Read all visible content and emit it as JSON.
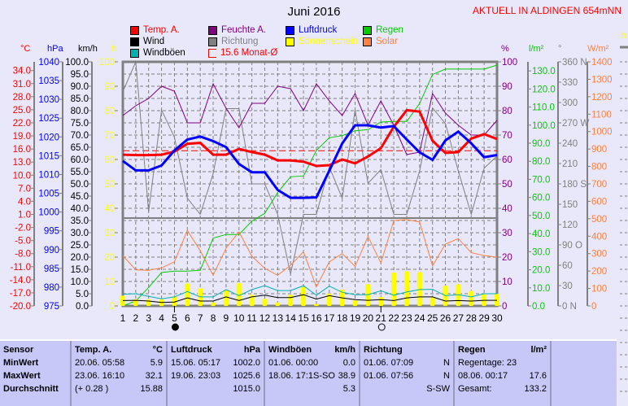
{
  "header": {
    "title": "Juni 2016",
    "station": "AKTUELL IN ALDINGEN 654mNN"
  },
  "legend": [
    {
      "label": "Temp. A.",
      "color": "#ff0000"
    },
    {
      "label": "Wind",
      "color": "#000000"
    },
    {
      "label": "Windböen",
      "color": "#00b0b0"
    },
    {
      "label": "Feuchte A.",
      "color": "#800080"
    },
    {
      "label": "Richtung",
      "color": "#808080"
    },
    {
      "label": "15.6 Monat-Ø",
      "color": "#ff0000"
    },
    {
      "label": "Luftdruck",
      "color": "#0000ff"
    },
    {
      "label": "Sonnenschein",
      "color": "#ffff00"
    },
    {
      "label": "Regen",
      "color": "#00cc00"
    },
    {
      "label": "Solar",
      "color": "#ff8040"
    }
  ],
  "chart_data": {
    "type": "line",
    "title": "Juni 2016",
    "x": [
      1,
      2,
      3,
      4,
      5,
      6,
      7,
      8,
      9,
      10,
      11,
      12,
      13,
      14,
      15,
      16,
      17,
      18,
      19,
      20,
      21,
      22,
      23,
      24,
      25,
      26,
      27,
      28,
      29,
      30
    ],
    "x_tick_labels": [
      "1",
      "2",
      "3",
      "4",
      "5",
      "6",
      "7",
      "8",
      "9",
      "10",
      "11",
      "12",
      "13",
      "14",
      "15",
      "16",
      "17",
      "18",
      "19",
      "20",
      "21",
      "22",
      "23",
      "24",
      "25",
      "26",
      "27",
      "28",
      "29",
      "30"
    ],
    "moon_phases": [
      {
        "day": 5,
        "phase": "new-moon"
      },
      {
        "day": 21,
        "phase": "full-moon"
      }
    ],
    "monthly_mean_temp": 15.6,
    "axes": {
      "temp": {
        "unit": "°C",
        "range": [
          -20,
          36
        ],
        "ticks": [
          "-20.0",
          "-17.0",
          "-14.0",
          "-11.0",
          "-8.0",
          "-5.0",
          "-2.0",
          "1.0",
          "4.0",
          "7.0",
          "10.0",
          "13.0",
          "16.0",
          "19.0",
          "22.0",
          "25.0",
          "28.0",
          "31.0",
          "34.0"
        ]
      },
      "pressure": {
        "unit": "hPa",
        "range": [
          975,
          1040
        ],
        "ticks": [
          "975",
          "980",
          "985",
          "990",
          "995",
          "1000",
          "1005",
          "1010",
          "1015",
          "1020",
          "1025",
          "1030",
          "1035",
          "1040"
        ]
      },
      "wind": {
        "unit": "km/h",
        "range": [
          0,
          100
        ],
        "ticks": [
          "0.0",
          "5.0",
          "10.0",
          "15.0",
          "20.0",
          "25.0",
          "30.0",
          "35.0",
          "40.0",
          "45.0",
          "50.0",
          "55.0",
          "60.0",
          "65.0",
          "70.0",
          "75.0",
          "80.0",
          "85.0",
          "90.0",
          "95.0",
          "100.0"
        ]
      },
      "sun": {
        "unit": "h",
        "range": [
          0,
          100
        ],
        "ticks": [
          "0",
          "10",
          "20",
          "30",
          "40",
          "50",
          "60",
          "70",
          "80",
          "90",
          "100"
        ]
      },
      "humidity": {
        "unit": "%",
        "range": [
          0,
          100
        ],
        "ticks": [
          "0",
          "10",
          "20",
          "30",
          "40",
          "50",
          "60",
          "70",
          "80",
          "90",
          "100"
        ]
      },
      "rain": {
        "unit": "l/m²",
        "range": [
          0,
          135
        ],
        "ticks": [
          "0.0",
          "10.0",
          "20.0",
          "30.0",
          "40.0",
          "50.0",
          "60.0",
          "70.0",
          "80.0",
          "90.0",
          "100.0",
          "110.0",
          "120.0",
          "130.0"
        ]
      },
      "direction": {
        "unit": "°",
        "range": [
          0,
          360
        ],
        "ticks": [
          "0   N",
          "30",
          "60",
          "90  O",
          "120",
          "150",
          "180 S",
          "210",
          "240",
          "270 W",
          "300",
          "330",
          "360 N"
        ]
      },
      "solar": {
        "unit": "W/m²",
        "range": [
          0,
          1400
        ],
        "ticks": [
          "0",
          "100",
          "200",
          "300",
          "400",
          "500",
          "600",
          "700",
          "800",
          "900",
          "1000",
          "1100",
          "1200",
          "1300",
          "1400"
        ]
      }
    },
    "series": [
      {
        "name": "Temp. A.",
        "axis": "temp",
        "color": "#ff0000",
        "values": [
          14.7,
          14.6,
          14.6,
          14.7,
          15.4,
          17.2,
          17.4,
          14.7,
          14.7,
          16.0,
          15.3,
          14.7,
          13.4,
          13.4,
          13.1,
          12.1,
          12.3,
          13.6,
          12.7,
          14.3,
          16.2,
          21.1,
          24.9,
          24.6,
          17.9,
          15.1,
          15.3,
          18.4,
          19.4,
          18.3
        ]
      },
      {
        "name": "Luftdruck",
        "axis": "pressure",
        "color": "#0000ff",
        "values": [
          1013.6,
          1011.1,
          1011.1,
          1012.4,
          1016.4,
          1019.3,
          1020.1,
          1018.9,
          1017.3,
          1012.8,
          1010.6,
          1010.6,
          1005.9,
          1003.8,
          1003.8,
          1003.9,
          1011.0,
          1018.3,
          1023.1,
          1023.1,
          1022.5,
          1022.9,
          1019.3,
          1015.9,
          1013.9,
          1019.1,
          1021.4,
          1018.3,
          1014.6,
          1015.2
        ]
      },
      {
        "name": "Feuchte A.",
        "axis": "humidity",
        "color": "#800080",
        "values": [
          78,
          82,
          85,
          90,
          88,
          75,
          75,
          91,
          81,
          73,
          83,
          83,
          90,
          89,
          80,
          91,
          84,
          78,
          87,
          74,
          84,
          74,
          62,
          63,
          87,
          79,
          74,
          70,
          70,
          76
        ]
      },
      {
        "name": "Richtung",
        "axis": "direction",
        "color": "#808080",
        "values": [
          316,
          360,
          139,
          289,
          249,
          159,
          135,
          195,
          291,
          291,
          180,
          180,
          135,
          47,
          135,
          135,
          205,
          159,
          289,
          181,
          201,
          135,
          135,
          199,
          292,
          269,
          199,
          135,
          203,
          221
        ]
      },
      {
        "name": "Regen",
        "axis": "rain",
        "color": "#00cc00",
        "values": [
          0,
          2.7,
          10.2,
          18.5,
          19.2,
          19.2,
          19.7,
          37.5,
          39.5,
          39.5,
          46.9,
          51.2,
          62.7,
          71.4,
          71.9,
          86,
          93,
          94.2,
          96.9,
          97.5,
          101.7,
          102,
          102,
          111.9,
          128,
          131,
          131,
          131,
          131,
          133.2
        ]
      },
      {
        "name": "Solar",
        "axis": "solar",
        "color": "#ff8040",
        "values": [
          288,
          207,
          204,
          218,
          253,
          433,
          316,
          176,
          331,
          425,
          285,
          215,
          176,
          233,
          311,
          109,
          253,
          300,
          227,
          398,
          246,
          490,
          495,
          482,
          230,
          355,
          386,
          305,
          289,
          280
        ]
      },
      {
        "name": "Windböen",
        "axis": "wind",
        "color": "#00b0b0",
        "values": [
          4.8,
          5.0,
          3.9,
          2.9,
          3.7,
          5.9,
          3.7,
          3.7,
          6.7,
          4.2,
          6.7,
          8.3,
          6.3,
          6.3,
          8.3,
          4.4,
          8.1,
          5.6,
          4.6,
          4.6,
          6.2,
          4.4,
          5.7,
          6.7,
          6.8,
          4.2,
          4.6,
          3.7,
          5.0,
          5.0
        ]
      },
      {
        "name": "Wind",
        "axis": "wind",
        "color": "#000000",
        "values": [
          2.2,
          2.3,
          2.0,
          1.4,
          1.6,
          3.3,
          2.0,
          2.0,
          3.7,
          2.2,
          3.7,
          4.4,
          3.4,
          3.4,
          4.6,
          2.8,
          4.2,
          3.3,
          2.6,
          2.3,
          2.6,
          2.2,
          3.3,
          3.7,
          3.7,
          2.0,
          2.2,
          2.0,
          2.3,
          2.3
        ]
      },
      {
        "name": "Sonnenschein",
        "axis": "sun",
        "type": "bar",
        "color": "#ffff00",
        "values": [
          4.2,
          2.7,
          2.7,
          2.7,
          3.9,
          9.2,
          7.2,
          1.4,
          6.4,
          9.4,
          4.6,
          2.9,
          1.4,
          4.6,
          7.8,
          0.8,
          5.1,
          6.7,
          2.3,
          8.9,
          3.7,
          13.7,
          14.2,
          13.9,
          3.7,
          8.3,
          8.9,
          6.2,
          4.8,
          5.0
        ]
      }
    ]
  },
  "table": {
    "columns": [
      {
        "header": "Sensor",
        "unit": "",
        "rows": [
          [
            "MinWert",
            ""
          ],
          [
            "MaxWert",
            ""
          ],
          [
            "Durchschnitt",
            ""
          ]
        ]
      },
      {
        "header": "Temp. A.",
        "unit": "°C",
        "rows": [
          [
            "20.06.  05:58",
            "5.9"
          ],
          [
            "23.06.  16:10",
            "32.1"
          ],
          [
            "(+ 0.28 )",
            "15.88"
          ]
        ]
      },
      {
        "header": "Luftdruck",
        "unit": "hPa",
        "rows": [
          [
            "15.06.  05:17",
            "1002.0"
          ],
          [
            "19.06.  23:03",
            "1025.6"
          ],
          [
            "",
            "1015.0"
          ]
        ]
      },
      {
        "header": "Windböen",
        "unit": "km/h",
        "rows": [
          [
            "01.06.  00:00",
            "0.0"
          ],
          [
            "18.06.  17:1S-SO",
            "38.9"
          ],
          [
            "",
            "5.3"
          ]
        ]
      },
      {
        "header": "Richtung",
        "unit": "",
        "rows": [
          [
            "01.06.  07:09",
            "N"
          ],
          [
            "01.06.  07:56",
            "N"
          ],
          [
            "",
            "S-SW"
          ]
        ]
      },
      {
        "header": "Regen",
        "unit": "l/m²",
        "rows": [
          [
            "Regentage: 23",
            ""
          ],
          [
            "08.06.  00:17",
            "17.6"
          ],
          [
            "Gesamt:",
            "133.2"
          ]
        ]
      },
      {
        "header": "",
        "unit": "",
        "rows": [
          [
            "",
            ""
          ],
          [
            "",
            ""
          ],
          [
            "",
            ""
          ]
        ]
      }
    ]
  },
  "side_chart": {
    "unit": "h"
  }
}
